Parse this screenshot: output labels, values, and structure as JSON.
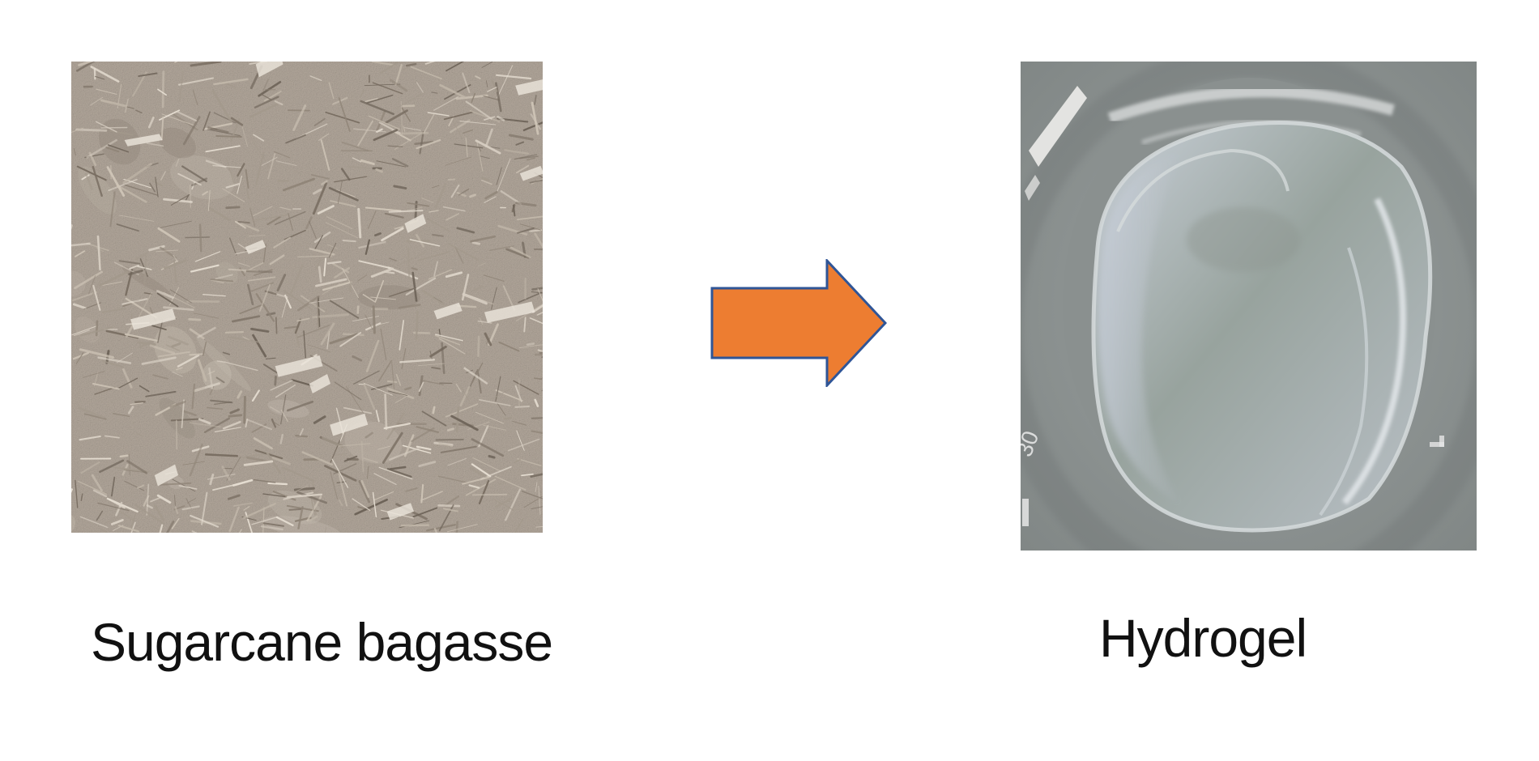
{
  "colors": {
    "arrow_fill": "#ED7D31",
    "arrow_stroke": "#2F5597",
    "bagasse_base": "#B3A89C",
    "hydrogel_base": "#8E9496"
  },
  "left": {
    "caption": "Sugarcane bagasse",
    "image_icon": "fibrous-bagasse-photo"
  },
  "arrow": {
    "icon": "right-arrow-icon"
  },
  "right": {
    "caption": "Hydrogel",
    "image_icon": "hydrogel-in-beaker-photo"
  }
}
